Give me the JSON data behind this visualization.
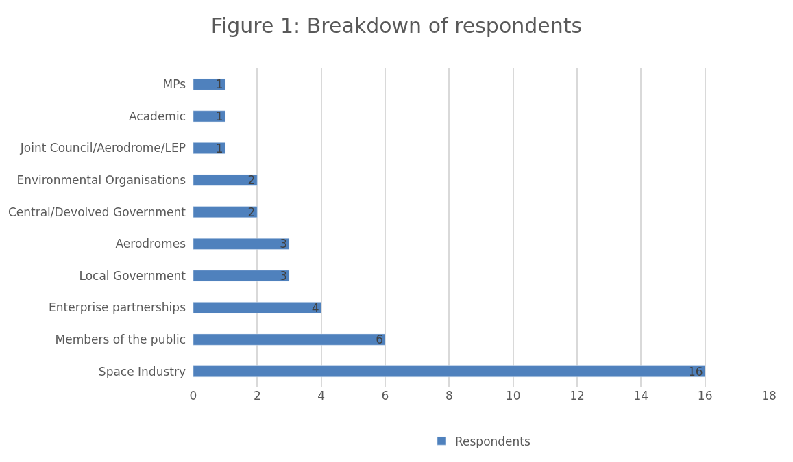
{
  "chart_data": {
    "type": "bar",
    "orientation": "horizontal",
    "title": "Figure 1: Breakdown of respondents",
    "categories": [
      "MPs",
      "Academic",
      "Joint Council/Aerodrome/LEP",
      "Environmental Organisations",
      "Central/Devolved Government",
      "Aerodromes",
      "Local Government",
      "Enterprise partnerships",
      "Members of the public",
      "Space Industry"
    ],
    "series": [
      {
        "name": "Respondents",
        "color": "#4f81bd",
        "values": [
          1,
          1,
          1,
          2,
          2,
          3,
          3,
          4,
          6,
          16
        ]
      }
    ],
    "xlim": [
      0,
      18
    ],
    "xticks": [
      0,
      2,
      4,
      6,
      8,
      10,
      12,
      14,
      16,
      18
    ],
    "grid": "x",
    "legend": "bottom",
    "data_labels": true
  }
}
